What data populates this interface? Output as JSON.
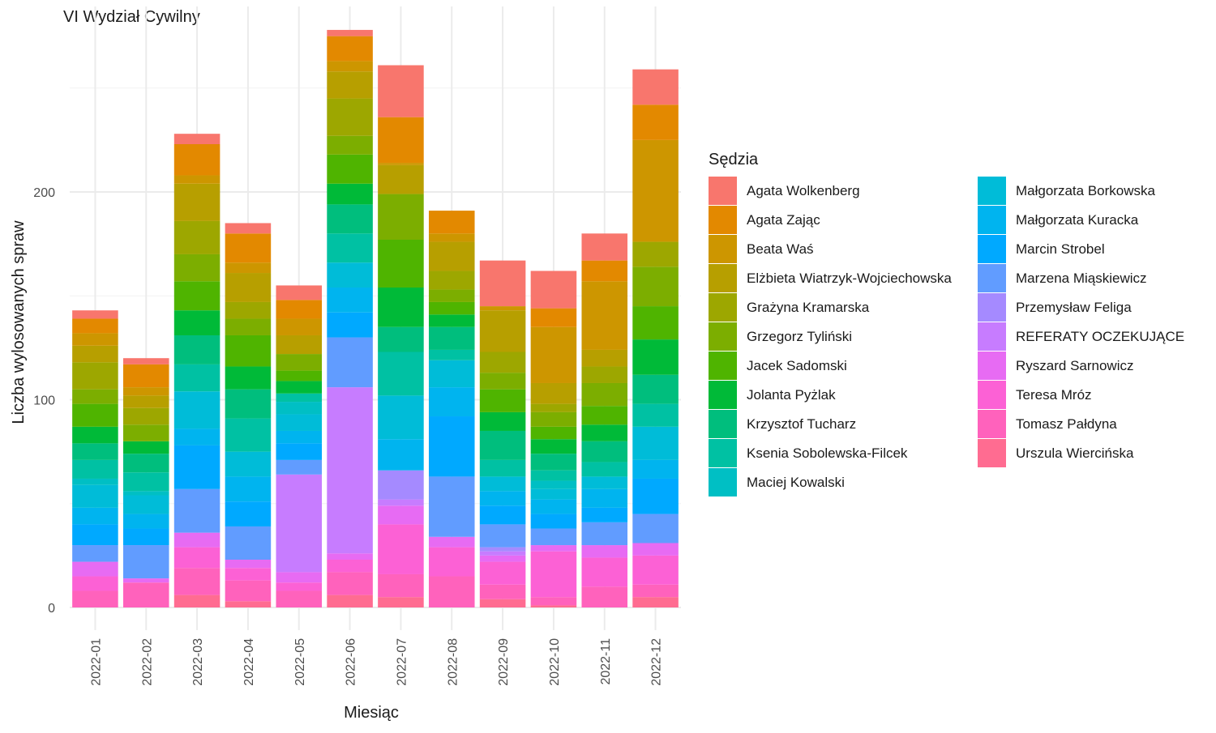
{
  "chart_data": {
    "type": "bar",
    "stacked": true,
    "title": "VI Wydział Cywilny",
    "xlabel": "Miesiąc",
    "ylabel": "Liczba wylosowanych spraw",
    "ylim": [
      -10,
      275
    ],
    "yticks": [
      0,
      100,
      200
    ],
    "grid": true,
    "legend_title": "Sędzia",
    "legend_position": "right",
    "categories": [
      "2022-01",
      "2022-02",
      "2022-03",
      "2022-04",
      "2022-05",
      "2022-06",
      "2022-07",
      "2022-08",
      "2022-09",
      "2022-10",
      "2022-11",
      "2022-12"
    ],
    "series": [
      {
        "name": "Urszula Wiercińska",
        "color": "#FF6C91",
        "values": [
          0,
          0,
          6,
          3,
          0,
          6,
          5,
          0,
          4,
          1,
          0,
          5
        ]
      },
      {
        "name": "Tomasz Pałdyna",
        "color": "#FF62BC",
        "values": [
          8,
          12,
          13,
          10,
          8,
          11,
          11,
          15,
          7,
          4,
          10,
          6
        ]
      },
      {
        "name": "Teresa Mróz",
        "color": "#FC61D5",
        "values": [
          7,
          0,
          10,
          6,
          4,
          6,
          24,
          14,
          11,
          22,
          14,
          14
        ]
      },
      {
        "name": "Ryszard Sarnowicz",
        "color": "#E76BF3",
        "values": [
          7,
          2,
          7,
          4,
          5,
          3,
          9,
          5,
          3,
          3,
          6,
          6
        ]
      },
      {
        "name": "REFERATY OCZEKUJĄCE",
        "color": "#C77CFF",
        "values": [
          0,
          0,
          0,
          0,
          47,
          80,
          3,
          0,
          2,
          0,
          0,
          0
        ]
      },
      {
        "name": "Przemysław Feliga",
        "color": "#A58AFF",
        "values": [
          0,
          0,
          0,
          0,
          0,
          0,
          14,
          0,
          2,
          0,
          0,
          0
        ]
      },
      {
        "name": "Marzena Miąskiewicz",
        "color": "#619CFF",
        "values": [
          8,
          16,
          21,
          16,
          7,
          24,
          0,
          29,
          11,
          8,
          11,
          14
        ]
      },
      {
        "name": "Marcin Strobel",
        "color": "#00A9FF",
        "values": [
          10,
          8,
          21,
          12,
          8,
          12,
          0,
          29,
          9,
          7,
          7,
          17
        ]
      },
      {
        "name": "Małgorzata Kuracka",
        "color": "#00B4EF",
        "values": [
          8,
          7,
          8,
          12,
          6,
          12,
          15,
          14,
          7,
          7,
          9,
          9
        ]
      },
      {
        "name": "Małgorzata Borkowska",
        "color": "#00BCD8",
        "values": [
          11,
          9,
          18,
          12,
          8,
          12,
          21,
          13,
          7,
          5,
          6,
          16
        ]
      },
      {
        "name": "Maciej Kowalski",
        "color": "#00BFC4",
        "values": [
          3,
          2,
          0,
          0,
          6,
          0,
          0,
          0,
          0,
          4,
          0,
          0
        ]
      },
      {
        "name": "Ksenia Sobolewska-Filcek",
        "color": "#00C1A3",
        "values": [
          9,
          9,
          13,
          16,
          4,
          14,
          21,
          5,
          8,
          5,
          7,
          11
        ]
      },
      {
        "name": "Krzysztof Tucharz",
        "color": "#00BE7D",
        "values": [
          8,
          9,
          14,
          14,
          0,
          14,
          12,
          11,
          14,
          8,
          10,
          14
        ]
      },
      {
        "name": "Jolanta Pyżlak",
        "color": "#00BA38",
        "values": [
          8,
          6,
          12,
          11,
          6,
          10,
          19,
          6,
          9,
          7,
          8,
          17
        ]
      },
      {
        "name": "Jacek Sadomski",
        "color": "#4FB400",
        "values": [
          11,
          0,
          14,
          15,
          5,
          14,
          23,
          6,
          11,
          6,
          9,
          16
        ]
      },
      {
        "name": "Grzegorz Tyliński",
        "color": "#7CAE00",
        "values": [
          7,
          8,
          13,
          8,
          8,
          9,
          22,
          6,
          8,
          7,
          11,
          19
        ]
      },
      {
        "name": "Grażyna Kramarska",
        "color": "#9DA700",
        "values": [
          13,
          8,
          16,
          8,
          0,
          18,
          0,
          9,
          10,
          4,
          8,
          12
        ]
      },
      {
        "name": "Elżbieta Wiatrzyk-Wojciechowska",
        "color": "#B79F00",
        "values": [
          8,
          6,
          18,
          14,
          9,
          13,
          14,
          14,
          20,
          10,
          8,
          0
        ]
      },
      {
        "name": "Beata Waś",
        "color": "#CD9600",
        "values": [
          6,
          4,
          4,
          5,
          8,
          5,
          1,
          4,
          2,
          27,
          33,
          49
        ]
      },
      {
        "name": "Agata Zając",
        "color": "#E38900",
        "values": [
          7,
          11,
          15,
          14,
          9,
          12,
          22,
          11,
          0,
          9,
          10,
          17
        ]
      },
      {
        "name": "Agata Wolkenberg",
        "color": "#F8766D",
        "values": [
          4,
          3,
          5,
          5,
          7,
          3,
          25,
          0,
          22,
          18,
          13,
          17
        ]
      }
    ],
    "legend_order": [
      "Agata Wolkenberg",
      "Agata Zając",
      "Beata Waś",
      "Elżbieta Wiatrzyk-Wojciechowska",
      "Grażyna Kramarska",
      "Grzegorz Tyliński",
      "Jacek Sadomski",
      "Jolanta Pyżlak",
      "Krzysztof Tucharz",
      "Ksenia Sobolewska-Filcek",
      "Maciej Kowalski",
      "Małgorzata Borkowska",
      "Małgorzata Kuracka",
      "Marcin Strobel",
      "Marzena Miąskiewicz",
      "Przemysław Feliga",
      "REFERATY OCZEKUJĄCE",
      "Ryszard Sarnowicz",
      "Teresa Mróz",
      "Tomasz Pałdyna",
      "Urszula Wiercińska"
    ]
  }
}
